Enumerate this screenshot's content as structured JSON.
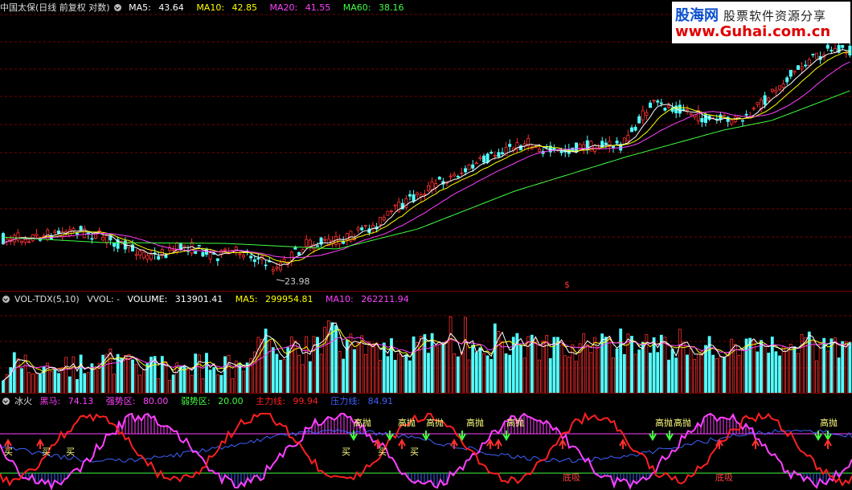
{
  "main": {
    "title": "中国太保(日线 前复权 对数)",
    "ma": [
      {
        "label": "MA5:",
        "value": "43.64",
        "color": "#ffffff"
      },
      {
        "label": "MA10:",
        "value": "42.85",
        "color": "#ffff00"
      },
      {
        "label": "MA20:",
        "value": "41.55",
        "color": "#ff40ff"
      },
      {
        "label": "MA60:",
        "value": "38.16",
        "color": "#40ff40"
      }
    ],
    "low_label": "23.98",
    "marker": "$"
  },
  "volume": {
    "title": "VOL-TDX(5,10)",
    "vvol": "VVOL: -",
    "items": [
      {
        "label": "VOLUME:",
        "value": "313901.41",
        "color": "#ffffff"
      },
      {
        "label": "MA5:",
        "value": "299954.81",
        "color": "#ffff00"
      },
      {
        "label": "MA10:",
        "value": "262211.94",
        "color": "#ff40ff"
      }
    ]
  },
  "indicator": {
    "title": "冰火",
    "items": [
      {
        "label": "黑马:",
        "value": "74.13",
        "color": "#ff40ff"
      },
      {
        "label": "强势区:",
        "value": "80.00",
        "color": "#ff40ff"
      },
      {
        "label": "弱势区:",
        "value": "20.00",
        "color": "#40ff40"
      },
      {
        "label": "主力线:",
        "value": "99.94",
        "color": "#ff2020"
      },
      {
        "label": "压力线:",
        "value": "84.91",
        "color": "#4060ff"
      }
    ],
    "signals": [
      "高抛",
      "买",
      "底吸"
    ]
  },
  "watermark": {
    "brand": "股海网",
    "subtitle": "股票软件资源分享",
    "url": "www.Guhai.com.cn"
  },
  "colors": {
    "up": "#ff3030",
    "down": "#54ffff",
    "grid": "#7a0000"
  }
}
